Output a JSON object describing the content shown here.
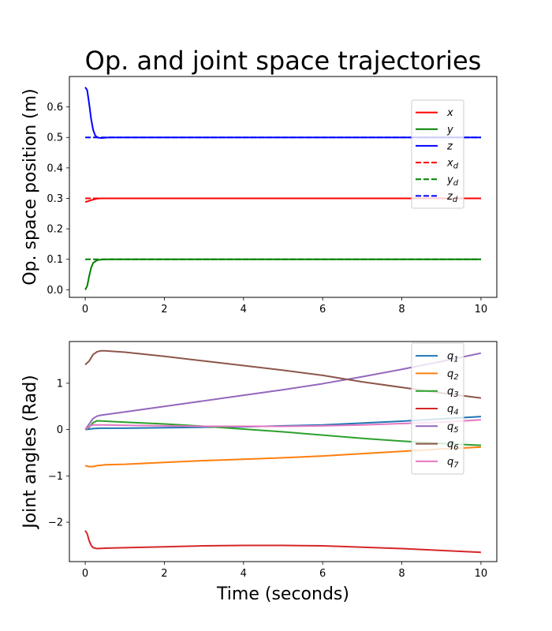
{
  "figure": {
    "title": "Op. and joint space trajectories"
  },
  "chart_data": [
    {
      "type": "line",
      "ylabel": "Op. space position (m)",
      "xlabel": "",
      "xlim": [
        -0.4,
        10.4
      ],
      "ylim": [
        -0.025,
        0.7
      ],
      "xticks": [
        0,
        2,
        4,
        6,
        8,
        10
      ],
      "yticks": [
        0.0,
        0.1,
        0.2,
        0.3,
        0.4,
        0.5,
        0.6
      ],
      "ytick_labels": [
        "0.0",
        "0.1",
        "0.2",
        "0.3",
        "0.4",
        "0.5",
        "0.6"
      ],
      "legend_position": "upper right",
      "series": [
        {
          "name": "x",
          "sub": "",
          "color": "#ff0000",
          "dash": "solid",
          "x": [
            0,
            0.1,
            0.2,
            0.3,
            0.4,
            0.6,
            1,
            2,
            4,
            6,
            8,
            10
          ],
          "y": [
            0.288,
            0.292,
            0.296,
            0.299,
            0.3,
            0.3,
            0.3,
            0.3,
            0.3,
            0.3,
            0.3,
            0.3
          ]
        },
        {
          "name": "y",
          "sub": "",
          "color": "#008000",
          "dash": "solid",
          "x": [
            0,
            0.05,
            0.1,
            0.15,
            0.2,
            0.3,
            0.4,
            0.6,
            1,
            2,
            4,
            6,
            8,
            10
          ],
          "y": [
            0.0,
            0.012,
            0.045,
            0.072,
            0.088,
            0.097,
            0.099,
            0.1,
            0.1,
            0.1,
            0.1,
            0.1,
            0.1,
            0.1
          ]
        },
        {
          "name": "z",
          "sub": "",
          "color": "#0000ff",
          "dash": "solid",
          "x": [
            0,
            0.05,
            0.1,
            0.15,
            0.2,
            0.25,
            0.3,
            0.4,
            0.6,
            1,
            2,
            4,
            6,
            8,
            10
          ],
          "y": [
            0.665,
            0.655,
            0.61,
            0.56,
            0.525,
            0.507,
            0.5,
            0.498,
            0.5,
            0.5,
            0.5,
            0.5,
            0.5,
            0.5,
            0.5
          ]
        },
        {
          "name": "x",
          "sub": "d",
          "color": "#ff0000",
          "dash": "dashed",
          "x": [
            0,
            10
          ],
          "y": [
            0.3,
            0.3
          ]
        },
        {
          "name": "y",
          "sub": "d",
          "color": "#008000",
          "dash": "dashed",
          "x": [
            0,
            10
          ],
          "y": [
            0.1,
            0.1
          ]
        },
        {
          "name": "z",
          "sub": "d",
          "color": "#0000ff",
          "dash": "dashed",
          "x": [
            0,
            10
          ],
          "y": [
            0.5,
            0.5
          ]
        }
      ]
    },
    {
      "type": "line",
      "ylabel": "Joint angles (Rad)",
      "xlabel": "Time (seconds)",
      "xlim": [
        -0.4,
        10.4
      ],
      "ylim": [
        -2.85,
        1.9
      ],
      "xticks": [
        0,
        2,
        4,
        6,
        8,
        10
      ],
      "yticks": [
        -2,
        -1,
        0,
        1
      ],
      "ytick_labels": [
        "−2",
        "−1",
        "0",
        "1"
      ],
      "legend_position": "upper right",
      "series": [
        {
          "name": "q",
          "sub": "1",
          "color": "#1f77b4",
          "dash": "solid",
          "x": [
            0,
            0.2,
            0.4,
            1,
            2,
            3,
            4,
            5,
            6,
            7,
            8,
            9,
            10
          ],
          "y": [
            0.0,
            0.02,
            0.03,
            0.03,
            0.04,
            0.05,
            0.06,
            0.08,
            0.1,
            0.14,
            0.18,
            0.23,
            0.28
          ]
        },
        {
          "name": "q",
          "sub": "2",
          "color": "#ff7f0e",
          "dash": "solid",
          "x": [
            0,
            0.1,
            0.2,
            0.3,
            0.5,
            1,
            2,
            3,
            4,
            5,
            6,
            7,
            8,
            9,
            10
          ],
          "y": [
            -0.78,
            -0.8,
            -0.8,
            -0.78,
            -0.76,
            -0.75,
            -0.71,
            -0.67,
            -0.64,
            -0.61,
            -0.57,
            -0.52,
            -0.47,
            -0.42,
            -0.38
          ]
        },
        {
          "name": "q",
          "sub": "3",
          "color": "#2ca02c",
          "dash": "solid",
          "x": [
            0,
            0.1,
            0.2,
            0.3,
            0.5,
            1,
            2,
            3,
            4,
            5,
            6,
            7,
            8,
            9,
            10
          ],
          "y": [
            0.0,
            0.05,
            0.15,
            0.19,
            0.18,
            0.16,
            0.12,
            0.07,
            0.01,
            -0.05,
            -0.12,
            -0.19,
            -0.25,
            -0.3,
            -0.34
          ]
        },
        {
          "name": "q",
          "sub": "4",
          "color": "#d62728",
          "dash": "solid",
          "x": [
            0,
            0.05,
            0.1,
            0.15,
            0.2,
            0.3,
            0.5,
            1,
            2,
            3,
            4,
            5,
            6,
            7,
            8,
            9,
            10
          ],
          "y": [
            -2.18,
            -2.25,
            -2.4,
            -2.5,
            -2.55,
            -2.57,
            -2.56,
            -2.55,
            -2.53,
            -2.51,
            -2.5,
            -2.5,
            -2.51,
            -2.54,
            -2.57,
            -2.61,
            -2.65
          ]
        },
        {
          "name": "q",
          "sub": "5",
          "color": "#9467bd",
          "dash": "solid",
          "x": [
            0,
            0.1,
            0.2,
            0.3,
            0.4,
            1,
            2,
            3,
            4,
            5,
            6,
            7,
            8,
            9,
            10
          ],
          "y": [
            0.0,
            0.12,
            0.24,
            0.29,
            0.31,
            0.38,
            0.5,
            0.62,
            0.74,
            0.86,
            0.99,
            1.14,
            1.3,
            1.47,
            1.65
          ]
        },
        {
          "name": "q",
          "sub": "6",
          "color": "#8c564b",
          "dash": "solid",
          "x": [
            0,
            0.1,
            0.2,
            0.3,
            0.4,
            0.5,
            1,
            2,
            3,
            4,
            5,
            6,
            7,
            8,
            9,
            10
          ],
          "y": [
            1.4,
            1.48,
            1.62,
            1.68,
            1.7,
            1.7,
            1.67,
            1.58,
            1.48,
            1.38,
            1.28,
            1.17,
            1.03,
            0.91,
            0.79,
            0.68
          ]
        },
        {
          "name": "q",
          "sub": "7",
          "color": "#e377c2",
          "dash": "solid",
          "x": [
            0,
            0.1,
            0.2,
            0.3,
            0.5,
            1,
            2,
            3,
            4,
            5,
            6,
            7,
            8,
            9,
            10
          ],
          "y": [
            0.0,
            0.07,
            0.1,
            0.1,
            0.1,
            0.09,
            0.08,
            0.07,
            0.07,
            0.07,
            0.08,
            0.1,
            0.13,
            0.16,
            0.21
          ]
        }
      ]
    }
  ]
}
